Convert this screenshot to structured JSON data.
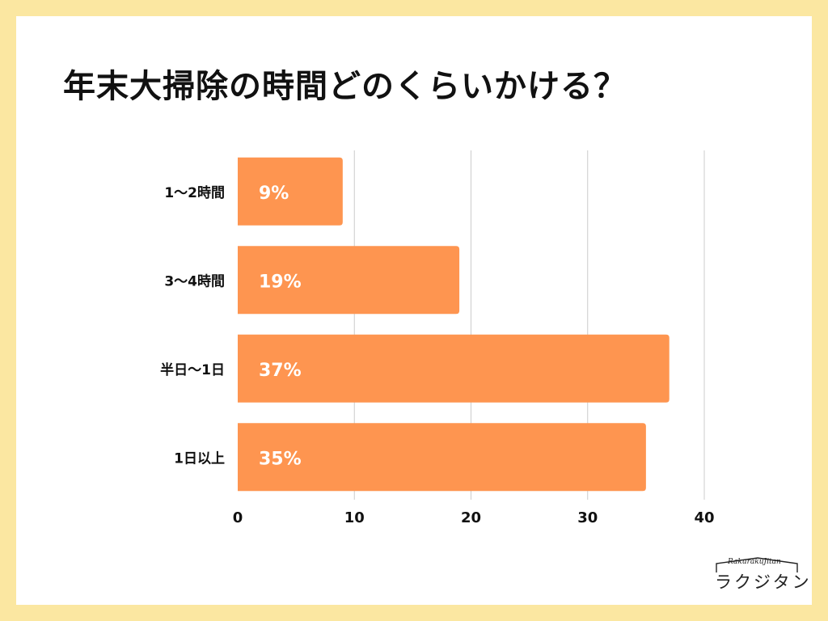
{
  "colors": {
    "background": "#fbe7a1",
    "card": "#ffffff",
    "bar": "#fe9550",
    "grid": "#cccccc",
    "text": "#111111"
  },
  "chart_data": {
    "type": "bar",
    "orientation": "horizontal",
    "title": "年末大掃除の時間どのくらいかける？",
    "categories": [
      "1〜2時間",
      "3〜4時間",
      "半日〜1日",
      "1日以上"
    ],
    "values": [
      9,
      19,
      37,
      35
    ],
    "value_labels": [
      "9%",
      "19%",
      "37%",
      "35%"
    ],
    "xlim": [
      0,
      40
    ],
    "xticks": [
      0,
      10,
      20,
      30,
      40
    ],
    "xtick_labels": [
      "0",
      "10",
      "20",
      "30",
      "40"
    ],
    "xlabel": "",
    "ylabel": "",
    "grid": true
  },
  "logo": {
    "small_text": "RakurakuJitan",
    "main_text": "ラクジタン"
  }
}
